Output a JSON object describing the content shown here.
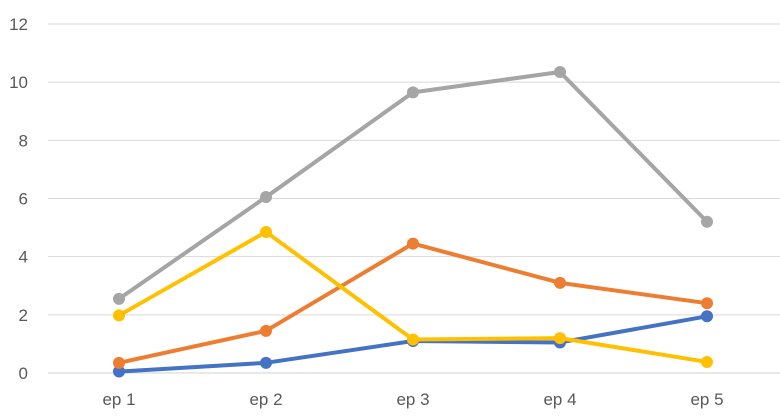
{
  "chart_data": {
    "type": "line",
    "title": "",
    "xlabel": "",
    "ylabel": "",
    "categories": [
      "ep 1",
      "ep 2",
      "ep 3",
      "ep 4",
      "ep 5"
    ],
    "ylim": [
      0,
      12
    ],
    "yticks": [
      0,
      2,
      4,
      6,
      8,
      10,
      12
    ],
    "grid": true,
    "legend": "none",
    "series": [
      {
        "color": "#4472c4",
        "values": [
          0.05,
          0.35,
          1.1,
          1.05,
          1.95
        ]
      },
      {
        "color": "#ed7d31",
        "values": [
          0.35,
          1.45,
          4.45,
          3.1,
          2.4
        ]
      },
      {
        "color": "#a5a5a5",
        "values": [
          2.55,
          6.05,
          9.65,
          10.35,
          5.2
        ]
      },
      {
        "color": "#ffc000",
        "values": [
          1.98,
          4.85,
          1.15,
          1.2,
          0.38
        ]
      }
    ]
  }
}
